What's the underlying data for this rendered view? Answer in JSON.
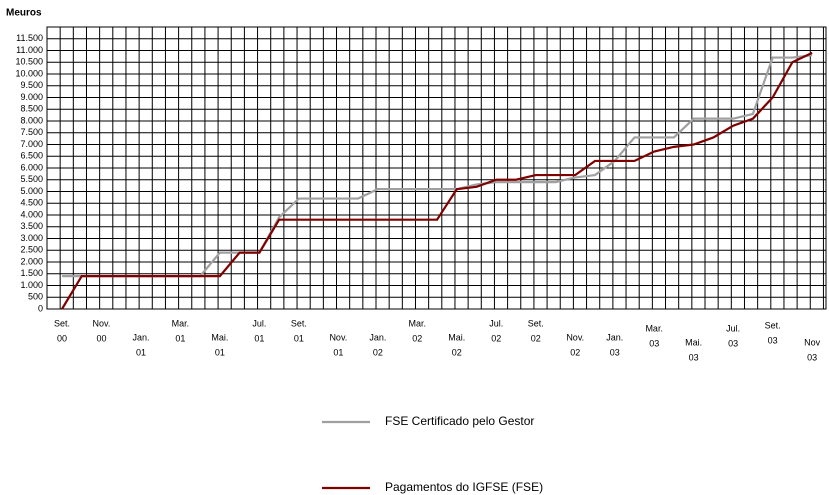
{
  "chart_data": {
    "type": "line",
    "title": "Meuros",
    "categories": [
      [
        "Set.",
        "00"
      ],
      null,
      [
        "Nov.",
        "00"
      ],
      null,
      [
        "Jan.",
        "01"
      ],
      null,
      [
        "Mar.",
        "01"
      ],
      null,
      [
        "Mai.",
        "01"
      ],
      null,
      [
        "Jul.",
        "01"
      ],
      null,
      [
        "Set.",
        "01"
      ],
      null,
      [
        "Nov.",
        "01"
      ],
      null,
      [
        "Jan.",
        "02"
      ],
      null,
      [
        "Mar.",
        "02"
      ],
      null,
      [
        "Mai.",
        "02"
      ],
      null,
      [
        "Jul.",
        "02"
      ],
      null,
      [
        "Set.",
        "02"
      ],
      null,
      [
        "Nov.",
        "02"
      ],
      null,
      [
        "Jan.",
        "03"
      ],
      null,
      [
        "Mar.",
        "03"
      ],
      null,
      [
        "Mai.",
        "03"
      ],
      null,
      [
        "Jul.",
        "03"
      ],
      null,
      [
        "Set.",
        "03"
      ],
      null,
      [
        "Nov",
        "03"
      ]
    ],
    "series": [
      {
        "name": "FSE Certificado pelo Gestor",
        "color": "#a0a0a0",
        "values": [
          1400,
          1400,
          1400,
          1400,
          1400,
          1400,
          1400,
          1400,
          2400,
          2400,
          2400,
          3900,
          4700,
          4700,
          4700,
          4700,
          5100,
          5100,
          5100,
          5100,
          5100,
          5300,
          5400,
          5400,
          5400,
          5400,
          5600,
          5700,
          6300,
          7300,
          7300,
          7300,
          8100,
          8100,
          8100,
          8300,
          10700,
          10700,
          10800
        ]
      },
      {
        "name": "Pagamentos do IGFSE (FSE)",
        "color": "#800000",
        "values": [
          0,
          1400,
          1400,
          1400,
          1400,
          1400,
          1400,
          1400,
          1400,
          2400,
          2400,
          3800,
          3800,
          3800,
          3800,
          3800,
          3800,
          3800,
          3800,
          3800,
          5100,
          5200,
          5500,
          5500,
          5700,
          5700,
          5700,
          6300,
          6300,
          6300,
          6700,
          6900,
          7000,
          7300,
          7800,
          8100,
          9000,
          10500,
          10900
        ]
      }
    ],
    "ylim": [
      0,
      12000
    ],
    "yticks": [
      0,
      {
        "value": 500,
        "label": "500"
      },
      {
        "value": 1000,
        "label": "1.000"
      },
      {
        "value": 1500,
        "label": "1.500"
      },
      {
        "value": 2000,
        "label": "2.000"
      },
      {
        "value": 2500,
        "label": "2.500"
      },
      {
        "value": 3000,
        "label": "3.000"
      },
      {
        "value": 3500,
        "label": "3.500"
      },
      {
        "value": 4000,
        "label": "4.000"
      },
      {
        "value": 4500,
        "label": "4.500"
      },
      {
        "value": 5000,
        "label": "5.000"
      },
      {
        "value": 5500,
        "label": "5.500"
      },
      {
        "value": 6000,
        "label": "6.000"
      },
      {
        "value": 6500,
        "label": "6.500"
      },
      {
        "value": 7000,
        "label": "7.000"
      },
      {
        "value": 7500,
        "label": "7.500"
      },
      {
        "value": 8000,
        "label": "8.000"
      },
      {
        "value": 8500,
        "label": "8.500"
      },
      {
        "value": 9000,
        "label": "9.000"
      },
      {
        "value": 9500,
        "label": "9.500"
      },
      {
        "value": 10000,
        "label": "10.000"
      },
      {
        "value": 10500,
        "label": "10.500"
      },
      {
        "value": 11000,
        "label": "11.000"
      },
      {
        "value": 11500,
        "label": "11.500"
      }
    ],
    "grid": true
  }
}
